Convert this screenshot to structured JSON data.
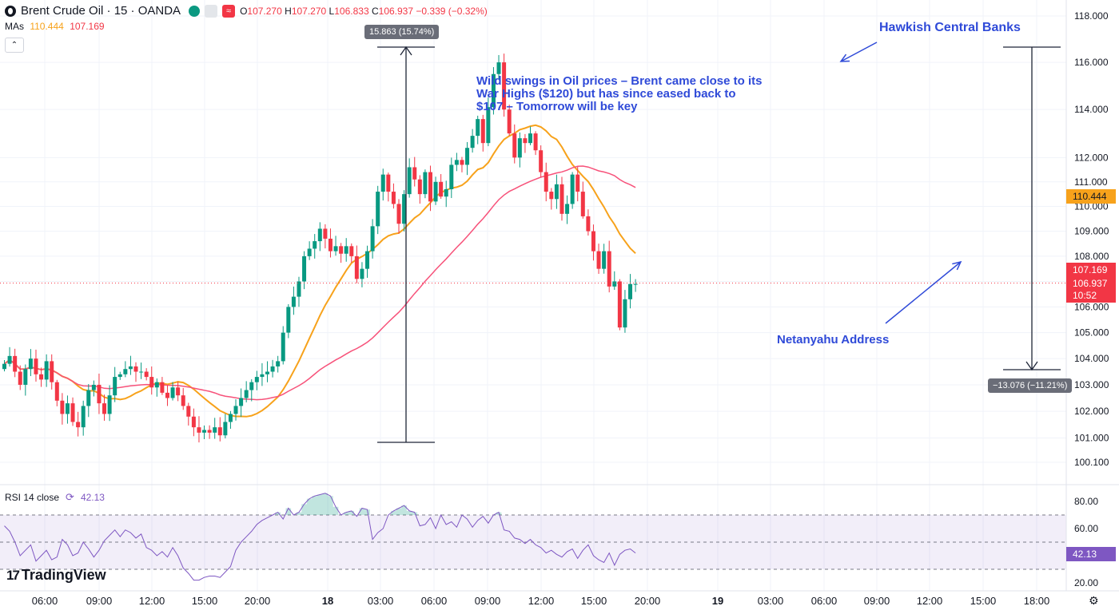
{
  "header": {
    "symbol": "Brent Crude Oil · 15 · OANDA",
    "open_label": "O",
    "open": "107.270",
    "high_label": "H",
    "high": "107.270",
    "low_label": "L",
    "low": "106.833",
    "close_label": "C",
    "close": "106.937",
    "change": "−0.339 (−0.32%)",
    "settings_glyph": "≈"
  },
  "mas": {
    "label": "MAs",
    "ma_fast": "110.444",
    "ma_slow": "107.169"
  },
  "collapse_glyph": "⌃",
  "rsi": {
    "label": "RSI 14 close",
    "value": "42.13",
    "cycle_glyph": "⟳"
  },
  "branding": {
    "mark": "17",
    "name": "TradingView"
  },
  "annotations": {
    "main": "Wild swings in Oil prices – Brent came close to its War Highs ($120) but has since eased back to $107 – Tomorrow will be key",
    "hawkish": "Hawkish Central Banks",
    "netanyahu": "Netanyahu Address"
  },
  "measurements": {
    "up": "15.863 (15.74%)",
    "down": "−13.076 (−11.21%)"
  },
  "price_labels": {
    "ma_fast": "110.444",
    "ma_slow": "107.169",
    "close": "106.937",
    "timer": "10:52",
    "rsi": "42.13"
  },
  "settings_glyph": "⚙",
  "colors": {
    "up": "#089981",
    "down": "#f23645",
    "ma_fast": "#f7a21b",
    "ma_slow": "#f7527a",
    "rsi": "#7e57c2",
    "annotation": "#2f4ad8",
    "grid": "#f0f3fa"
  },
  "chart_data": [
    {
      "type": "candlestick",
      "title": "Brent Crude Oil · 15 · OANDA",
      "y_ticks": [
        "118.000",
        "116.000",
        "114.000",
        "112.000",
        "111.000",
        "110.000",
        "109.000",
        "108.000",
        "107.000",
        "106.000",
        "105.000",
        "104.000",
        "103.000",
        "102.000",
        "101.000",
        "100.100"
      ],
      "y_tick_values": [
        118,
        116,
        114,
        112,
        111,
        110,
        109,
        108,
        107,
        106,
        105,
        104,
        103,
        102,
        101,
        100.1
      ],
      "x_ticks": [
        "06:00",
        "09:00",
        "12:00",
        "15:00",
        "20:00",
        "18",
        "03:00",
        "06:00",
        "09:00",
        "12:00",
        "15:00",
        "20:00",
        "19",
        "03:00",
        "06:00",
        "09:00",
        "12:00",
        "15:00",
        "18:00"
      ],
      "bold_x_ticks": [
        "18",
        "19"
      ],
      "last_close": 106.937,
      "scale": "log",
      "close_path": [
        103.8,
        104.1,
        103.5,
        103.0,
        103.6,
        104.0,
        103.4,
        103.2,
        103.9,
        103.1,
        102.4,
        101.9,
        102.3,
        101.6,
        101.4,
        102.2,
        102.8,
        103.0,
        102.3,
        101.9,
        102.6,
        103.3,
        103.4,
        103.6,
        103.7,
        103.5,
        103.5,
        103.3,
        102.9,
        103.1,
        102.7,
        102.5,
        102.9,
        102.6,
        102.2,
        101.8,
        101.4,
        101.2,
        101.3,
        101.2,
        101.4,
        101.1,
        101.6,
        101.9,
        102.2,
        102.5,
        102.8,
        103.1,
        103.3,
        103.4,
        103.5,
        103.7,
        103.9,
        105.0,
        106.0,
        106.4,
        107.0,
        108.0,
        108.3,
        108.6,
        109.1,
        108.7,
        108.2,
        108.4,
        108.1,
        108.4,
        108.0,
        107.1,
        107.5,
        108.2,
        109.2,
        110.6,
        111.3,
        110.6,
        110.1,
        109.3,
        110.5,
        111.6,
        111.1,
        110.5,
        111.4,
        110.2,
        111.0,
        110.4,
        110.7,
        111.7,
        111.9,
        111.7,
        112.4,
        112.9,
        113.6,
        112.6,
        114.1,
        115.5,
        116.0,
        114.0,
        113.0,
        112.0,
        112.8,
        112.6,
        113.0,
        112.3,
        111.4,
        110.6,
        110.3,
        110.9,
        109.7,
        110.1,
        111.3,
        110.6,
        109.6,
        109.0,
        108.2,
        107.5,
        108.2,
        106.8,
        107.0,
        105.2,
        106.3,
        106.9,
        106.9
      ],
      "rsi_panel": {
        "label": "RSI 14 close",
        "value": 42.13,
        "y_ticks": [
          "80.00",
          "60.00",
          "40.00",
          "20.00"
        ],
        "bands": {
          "upper": 70,
          "middle": 50,
          "lower": 30
        },
        "values": [
          62,
          58,
          50,
          40,
          44,
          48,
          36,
          40,
          44,
          37,
          39,
          52,
          48,
          40,
          42,
          50,
          45,
          39,
          44,
          51,
          55,
          59,
          54,
          59,
          57,
          53,
          56,
          46,
          44,
          40,
          43,
          39,
          46,
          40,
          31,
          27,
          22,
          22,
          24,
          25,
          25,
          24,
          28,
          32,
          44,
          50,
          54,
          58,
          63,
          66,
          68,
          70,
          72,
          67,
          75,
          70,
          72,
          78,
          82,
          84,
          85,
          86,
          84,
          76,
          70,
          72,
          73,
          69,
          75,
          74,
          52,
          57,
          60,
          70,
          73,
          75,
          77,
          73,
          72,
          62,
          63,
          68,
          60,
          70,
          63,
          65,
          61,
          70,
          67,
          61,
          66,
          69,
          64,
          70,
          72,
          59,
          58,
          53,
          52,
          49,
          52,
          48,
          46,
          42,
          44,
          41,
          39,
          43,
          45,
          38,
          44,
          48,
          40,
          37,
          35,
          42,
          33,
          41,
          44,
          45,
          42
        ]
      }
    }
  ]
}
